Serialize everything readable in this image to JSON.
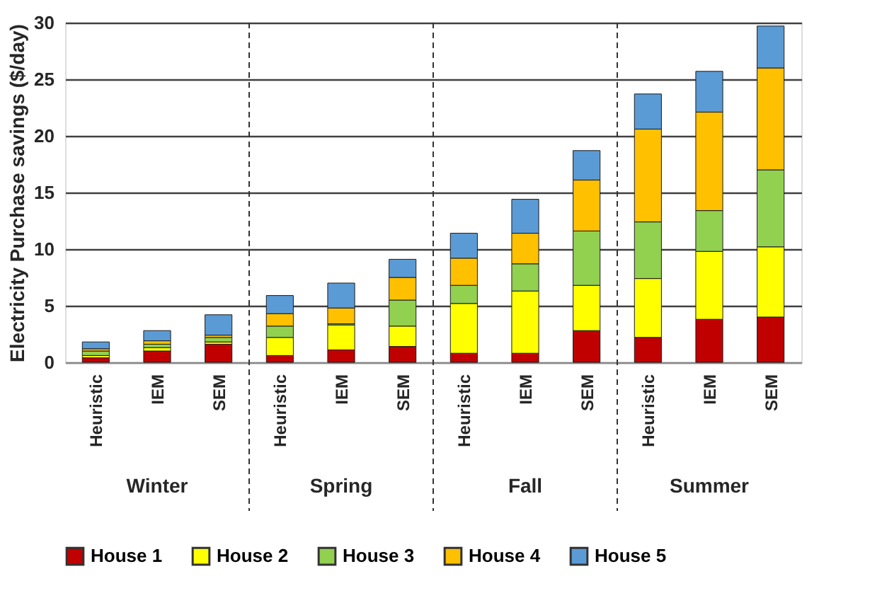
{
  "chart_data": {
    "type": "bar",
    "stacked": true,
    "ylabel": "Electricity Purchase savings ($/day)",
    "categories": [
      "Heuristic",
      "IEM",
      "SEM",
      "Heuristic",
      "IEM",
      "SEM",
      "Heuristic",
      "IEM",
      "SEM",
      "Heuristic",
      "IEM",
      "SEM"
    ],
    "series": [
      {
        "name": "House 1",
        "color": "#c00000",
        "values": [
          0.4,
          1.0,
          1.6,
          0.6,
          1.1,
          1.4,
          0.8,
          0.8,
          2.8,
          2.2,
          3.8,
          4.0
        ]
      },
      {
        "name": "House 2",
        "color": "#ffff00",
        "values": [
          0.2,
          0.3,
          0.2,
          1.6,
          2.2,
          1.8,
          4.4,
          5.5,
          4.0,
          5.2,
          6.0,
          6.2
        ]
      },
      {
        "name": "House 3",
        "color": "#92d050",
        "values": [
          0.4,
          0.3,
          0.4,
          1.0,
          0.1,
          2.3,
          1.6,
          2.4,
          4.8,
          5.0,
          3.6,
          6.8
        ]
      },
      {
        "name": "House 4",
        "color": "#ffc000",
        "values": [
          0.2,
          0.3,
          0.2,
          1.1,
          1.4,
          2.0,
          2.4,
          2.7,
          4.5,
          8.2,
          8.7,
          9.0
        ]
      },
      {
        "name": "House 5",
        "color": "#5b9bd5",
        "values": [
          0.6,
          0.9,
          1.8,
          1.6,
          2.2,
          1.6,
          2.2,
          3.0,
          2.6,
          3.1,
          3.6,
          3.7
        ]
      }
    ],
    "ylim": [
      0,
      30
    ],
    "yticks": [
      0,
      5,
      10,
      15,
      20,
      25,
      30
    ],
    "grid": "y",
    "legend": "bottom",
    "annotations": [
      "Winter",
      "Spring",
      "Fall",
      "Summer"
    ]
  }
}
